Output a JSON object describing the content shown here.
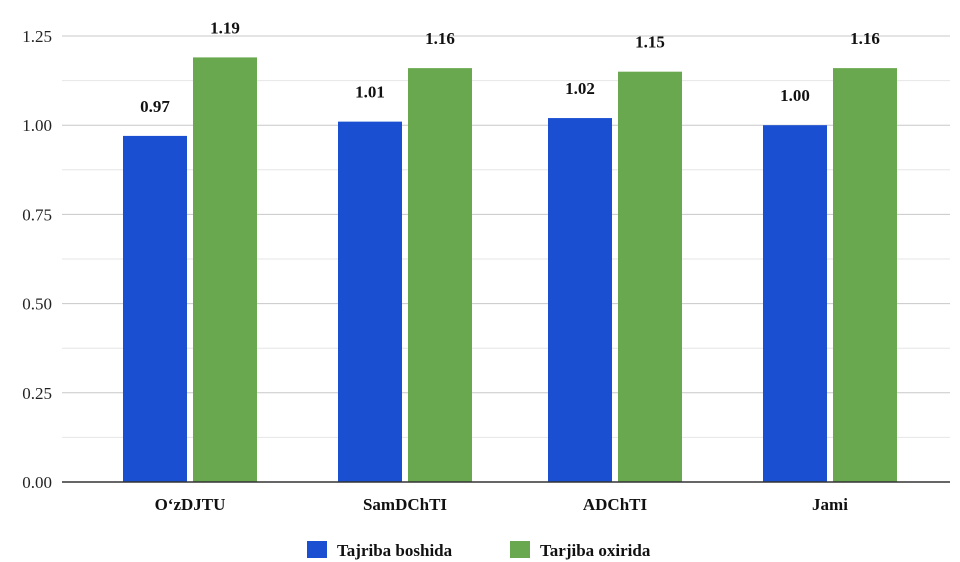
{
  "chart_data": {
    "type": "bar",
    "title": "",
    "xlabel": "",
    "ylabel": "",
    "categories": [
      "O‘zDJTU",
      "SamDChTI",
      "ADChTI",
      "Jami"
    ],
    "series": [
      {
        "name": "Tajriba boshida",
        "values": [
          0.97,
          1.01,
          1.02,
          1.0
        ],
        "labels": [
          "0.97",
          "1.01",
          "1.02",
          "1.00"
        ],
        "color": "#1a4fd1"
      },
      {
        "name": "Tarjiba oxirida",
        "values": [
          1.19,
          1.16,
          1.15,
          1.16
        ],
        "labels": [
          "1.19",
          "1.16",
          "1.15",
          "1.16"
        ],
        "color": "#6aa84f"
      }
    ],
    "ylim": [
      0,
      1.25
    ],
    "yticks": [
      "0.00",
      "0.25",
      "0.50",
      "0.75",
      "1.00",
      "1.25"
    ],
    "grid": true,
    "legend_position": "bottom"
  }
}
